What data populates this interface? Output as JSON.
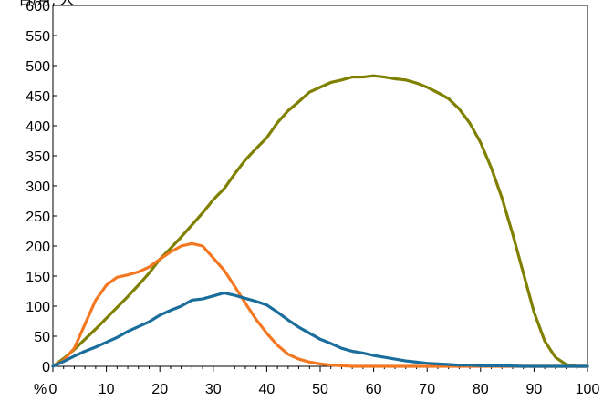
{
  "chart_data": {
    "type": "line",
    "title": "",
    "xlabel": "",
    "ylabel": "",
    "x_unit_label": "%",
    "xlim": [
      0,
      100
    ],
    "ylim": [
      0,
      600
    ],
    "xticks": [
      0,
      10,
      20,
      30,
      40,
      50,
      60,
      70,
      80,
      90,
      100
    ],
    "yticks": [
      0,
      50,
      100,
      150,
      200,
      250,
      300,
      350,
      400,
      450,
      500,
      550,
      600
    ],
    "grid": false,
    "legend": "none",
    "series": [
      {
        "color": "#808000",
        "x": [
          0,
          2,
          4,
          6,
          8,
          10,
          12,
          14,
          16,
          18,
          20,
          22,
          24,
          26,
          28,
          30,
          32,
          34,
          36,
          38,
          40,
          42,
          44,
          46,
          48,
          50,
          52,
          54,
          56,
          58,
          60,
          62,
          64,
          66,
          68,
          70,
          72,
          74,
          76,
          78,
          80,
          82,
          84,
          86,
          88,
          90,
          92,
          94,
          96,
          98,
          100
        ],
        "y": [
          0,
          13,
          28,
          45,
          62,
          80,
          98,
          116,
          135,
          155,
          178,
          196,
          215,
          235,
          255,
          277,
          295,
          320,
          343,
          362,
          380,
          405,
          425,
          440,
          456,
          464,
          472,
          476,
          481,
          481,
          483,
          481,
          478,
          476,
          471,
          464,
          455,
          445,
          428,
          404,
          372,
          330,
          280,
          220,
          155,
          90,
          42,
          15,
          3,
          0,
          0
        ]
      },
      {
        "color": "#f47721",
        "x": [
          0,
          2,
          4,
          6,
          8,
          10,
          12,
          14,
          16,
          18,
          20,
          22,
          24,
          26,
          28,
          30,
          32,
          34,
          36,
          38,
          40,
          42,
          44,
          46,
          48,
          50,
          52,
          54,
          56,
          58,
          60,
          65,
          70,
          80,
          90,
          100
        ],
        "y": [
          0,
          10,
          30,
          70,
          110,
          135,
          148,
          152,
          157,
          165,
          178,
          190,
          200,
          204,
          200,
          180,
          160,
          133,
          105,
          78,
          55,
          35,
          20,
          12,
          7,
          4,
          2,
          1,
          0,
          0,
          0,
          0,
          0,
          0,
          0,
          0
        ]
      },
      {
        "color": "#1a6e9b",
        "x": [
          0,
          2,
          4,
          6,
          8,
          10,
          12,
          14,
          16,
          18,
          20,
          22,
          24,
          26,
          28,
          30,
          32,
          34,
          36,
          38,
          40,
          42,
          44,
          46,
          48,
          50,
          52,
          54,
          56,
          58,
          60,
          62,
          64,
          66,
          68,
          70,
          72,
          74,
          76,
          78,
          80,
          84,
          88,
          92,
          96,
          100
        ],
        "y": [
          0,
          8,
          17,
          25,
          32,
          40,
          48,
          58,
          66,
          74,
          85,
          93,
          100,
          110,
          112,
          117,
          122,
          118,
          113,
          108,
          102,
          90,
          77,
          65,
          55,
          45,
          38,
          30,
          25,
          22,
          18,
          15,
          12,
          9,
          7,
          5,
          4,
          3,
          2,
          2,
          1,
          1,
          0,
          0,
          0,
          0
        ]
      }
    ]
  },
  "x_unit_label": "%",
  "top_partial_label": "台/月, 人"
}
